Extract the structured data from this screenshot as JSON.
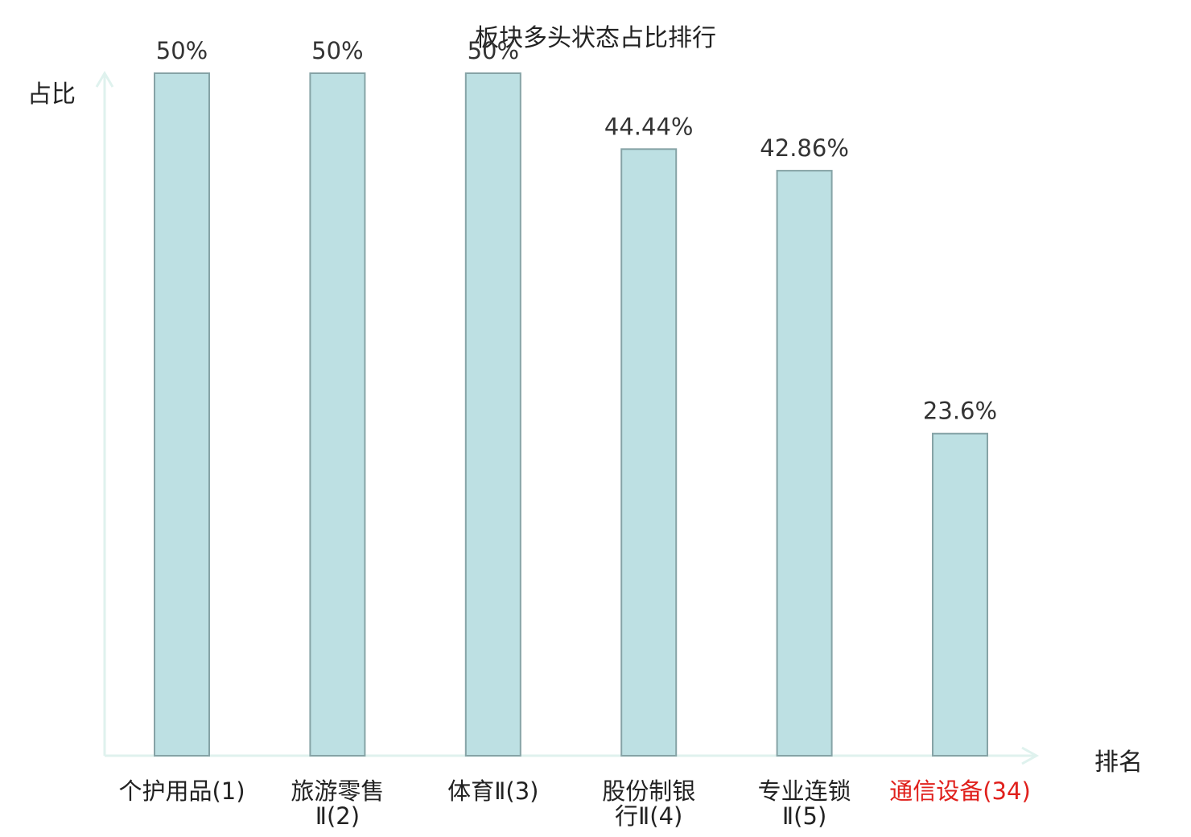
{
  "chart_data": {
    "type": "bar",
    "title": "板块多头状态占比排行",
    "ylabel": "占比",
    "xlabel": "排名",
    "categories": [
      [
        "个护用品(1)"
      ],
      [
        "旅游零售",
        "Ⅱ(2)"
      ],
      [
        "体育Ⅱ(3)"
      ],
      [
        "股份制银",
        "行Ⅱ(4)"
      ],
      [
        "专业连锁",
        "Ⅱ(5)"
      ],
      [
        "通信设备(34)"
      ]
    ],
    "values": [
      50,
      50,
      50,
      44.44,
      42.86,
      23.6
    ],
    "value_labels": [
      "50%",
      "50%",
      "50%",
      "44.44%",
      "42.86%",
      "23.6%"
    ],
    "highlight_index": 5,
    "ylim": [
      0,
      50
    ],
    "colors": {
      "bar_fill": "#bde0e3",
      "bar_stroke": "#86a3a6",
      "axis": "#dff2ee",
      "text": "#333333",
      "highlight_text": "#e0201c"
    }
  }
}
